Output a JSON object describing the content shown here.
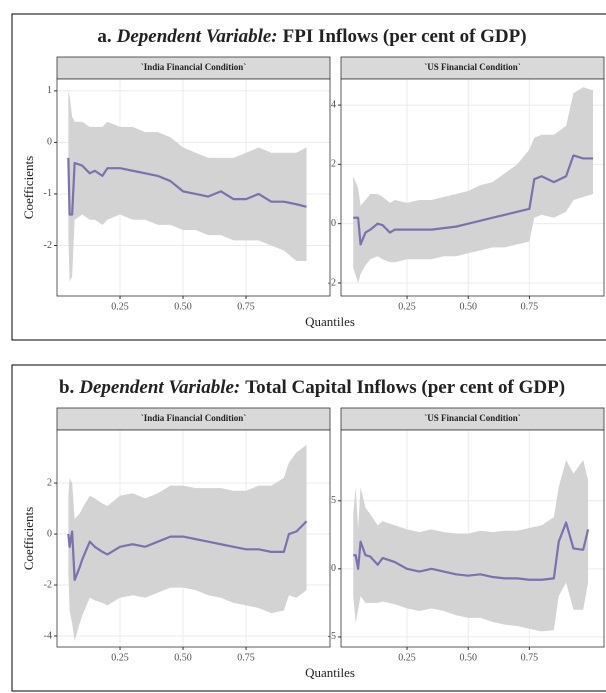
{
  "chart_data": [
    {
      "type": "line",
      "title_label": "a.",
      "title_emphasis": "Dependent Variable:",
      "title_text": "FPI Inflows (per cent of GDP)",
      "y_label": "Coefficients",
      "x_label": "Quantiles",
      "panels": [
        {
          "strip": "`India Financial Condition`",
          "color": "#7b72ad",
          "band_color": "#d3d3d3",
          "grid": true,
          "xlim": [
            0,
            1.083
          ],
          "xticks": [
            0.25,
            {
              "value": 0.5,
              "label": "0.50"
            },
            0.75
          ],
          "ylim": [
            -2.98,
            1.23
          ],
          "yticks": [
            1,
            0,
            -1,
            -2
          ],
          "x": [
            0.045,
            0.05,
            0.06,
            0.07,
            0.1,
            0.13,
            0.15,
            0.18,
            0.2,
            0.25,
            0.3,
            0.35,
            0.4,
            0.45,
            0.5,
            0.55,
            0.6,
            0.65,
            0.7,
            0.75,
            0.8,
            0.85,
            0.9,
            0.95,
            0.99
          ],
          "values": [
            -0.3,
            -1.4,
            -1.4,
            -0.4,
            -0.45,
            -0.6,
            -0.55,
            -0.65,
            -0.5,
            -0.5,
            -0.55,
            -0.6,
            -0.65,
            -0.75,
            -0.95,
            -1.0,
            -1.05,
            -0.95,
            -1.1,
            -1.1,
            -1.0,
            -1.15,
            -1.15,
            -1.2,
            -1.25
          ],
          "lower": [
            -1.8,
            -2.7,
            -2.6,
            -1.5,
            -1.4,
            -1.5,
            -1.5,
            -1.6,
            -1.5,
            -1.4,
            -1.5,
            -1.5,
            -1.6,
            -1.6,
            -1.7,
            -1.7,
            -1.8,
            -1.8,
            -1.9,
            -1.9,
            -1.9,
            -2.0,
            -2.1,
            -2.3,
            -2.3
          ],
          "upper": [
            1.0,
            0.9,
            0.5,
            0.4,
            0.4,
            0.3,
            0.3,
            0.3,
            0.4,
            0.3,
            0.3,
            0.2,
            0.2,
            0.1,
            -0.1,
            -0.2,
            -0.3,
            -0.3,
            -0.3,
            -0.2,
            -0.1,
            -0.2,
            -0.2,
            -0.2,
            -0.1
          ]
        },
        {
          "strip": "`US Financial Condition`",
          "color": "#7b72ad",
          "band_color": "#d3d3d3",
          "grid": true,
          "xlim": [
            -0.02,
            1.055
          ],
          "xticks": [
            0.25,
            {
              "value": 0.5,
              "label": "0.50"
            },
            0.75
          ],
          "ylim": [
            -2.44,
            4.88
          ],
          "yticks": [
            4,
            2,
            0,
            -2
          ],
          "x": [
            0.03,
            0.05,
            0.06,
            0.08,
            0.1,
            0.13,
            0.15,
            0.18,
            0.2,
            0.25,
            0.3,
            0.35,
            0.4,
            0.45,
            0.5,
            0.55,
            0.6,
            0.65,
            0.7,
            0.75,
            0.77,
            0.8,
            0.85,
            0.9,
            0.93,
            0.97,
            1.01
          ],
          "values": [
            0.2,
            0.2,
            -0.7,
            -0.3,
            -0.2,
            0,
            -0.05,
            -0.3,
            -0.2,
            -0.2,
            -0.2,
            -0.2,
            -0.15,
            -0.1,
            0,
            0.1,
            0.2,
            0.3,
            0.4,
            0.5,
            1.5,
            1.6,
            1.4,
            1.6,
            2.3,
            2.2,
            2.2
          ],
          "lower": [
            -1.5,
            -2,
            -1.7,
            -1.4,
            -1.2,
            -1.1,
            -1.2,
            -1.3,
            -1.3,
            -1.2,
            -1.2,
            -1.2,
            -1.1,
            -1.1,
            -1.0,
            -0.9,
            -0.8,
            -0.8,
            -0.7,
            -0.6,
            0.2,
            0.3,
            0.2,
            0.4,
            0.8,
            0.9,
            1.0
          ],
          "upper": [
            1.6,
            1.2,
            0.6,
            0.8,
            1.0,
            1.0,
            0.9,
            0.7,
            0.8,
            0.7,
            0.8,
            0.8,
            0.9,
            1.0,
            1.1,
            1.3,
            1.4,
            1.7,
            2.0,
            2.5,
            2.9,
            3.0,
            3.0,
            3.3,
            4.4,
            4.6,
            4.5
          ]
        }
      ]
    },
    {
      "type": "line",
      "title_label": "b.",
      "title_emphasis": "Dependent Variable:",
      "title_text": "Total Capital Inflows (per cent of GDP)",
      "y_label": "Coefficients",
      "x_label": "Quantiles",
      "panels": [
        {
          "strip": "`India Financial Condition`",
          "color": "#7b72ad",
          "band_color": "#d3d3d3",
          "grid": true,
          "xlim": [
            0,
            1.083
          ],
          "xticks": [
            0.25,
            {
              "value": 0.5,
              "label": "0.50"
            },
            0.75
          ],
          "ylim": [
            -4.43,
            4.08
          ],
          "yticks": [
            2,
            0,
            -2,
            -4
          ],
          "x": [
            0.045,
            0.05,
            0.06,
            0.07,
            0.09,
            0.1,
            0.13,
            0.15,
            0.18,
            0.2,
            0.25,
            0.3,
            0.35,
            0.4,
            0.45,
            0.5,
            0.55,
            0.6,
            0.65,
            0.7,
            0.75,
            0.8,
            0.85,
            0.9,
            0.92,
            0.95,
            0.99
          ],
          "values": [
            0,
            -0.5,
            0.1,
            -1.8,
            -1.3,
            -1.0,
            -0.3,
            -0.5,
            -0.7,
            -0.8,
            -0.5,
            -0.4,
            -0.5,
            -0.3,
            -0.1,
            -0.1,
            -0.2,
            -0.3,
            -0.4,
            -0.5,
            -0.6,
            -0.6,
            -0.7,
            -0.7,
            0,
            0.1,
            0.5
          ],
          "lower": [
            -1.5,
            -3.0,
            -3.5,
            -4.2,
            -3.5,
            -3.2,
            -2.5,
            -2.6,
            -2.7,
            -2.8,
            -2.5,
            -2.4,
            -2.5,
            -2.3,
            -2.1,
            -2.1,
            -2.2,
            -2.4,
            -2.5,
            -2.7,
            -2.8,
            -2.9,
            -3.1,
            -3.0,
            -2.4,
            -2.5,
            -2.2
          ],
          "upper": [
            1.5,
            2.2,
            2.0,
            0.6,
            0.8,
            1.0,
            1.5,
            1.4,
            1.2,
            1.1,
            1.5,
            1.6,
            1.4,
            1.6,
            1.9,
            1.9,
            1.8,
            1.8,
            1.8,
            1.7,
            1.7,
            1.9,
            1.9,
            2.2,
            2.8,
            3.2,
            3.5
          ]
        },
        {
          "strip": "`US Financial Condition`",
          "color": "#7b72ad",
          "band_color": "#d3d3d3",
          "grid": true,
          "xlim": [
            -0.02,
            1.055
          ],
          "xticks": [
            0.25,
            {
              "value": 0.5,
              "label": "0.50"
            },
            0.75
          ],
          "ylim": [
            -5.74,
            10.2
          ],
          "yticks": [
            5,
            0,
            -5
          ],
          "x": [
            0.03,
            0.04,
            0.05,
            0.06,
            0.08,
            0.1,
            0.13,
            0.15,
            0.2,
            0.25,
            0.3,
            0.35,
            0.4,
            0.45,
            0.5,
            0.55,
            0.6,
            0.65,
            0.7,
            0.75,
            0.8,
            0.85,
            0.87,
            0.9,
            0.93,
            0.97,
            0.99
          ],
          "values": [
            1.0,
            1.0,
            0,
            2.0,
            1.0,
            0.9,
            0.3,
            0.8,
            0.5,
            0,
            -0.2,
            0,
            -0.2,
            -0.4,
            -0.5,
            -0.4,
            -0.6,
            -0.7,
            -0.7,
            -0.8,
            -0.8,
            -0.7,
            2.0,
            3.4,
            1.5,
            1.4,
            2.9
          ],
          "lower": [
            -2,
            -4,
            -3,
            -2,
            -2.5,
            -2.5,
            -2.5,
            -2.4,
            -2.6,
            -2.9,
            -3.1,
            -2.9,
            -3.1,
            -3.4,
            -3.6,
            -3.6,
            -3.9,
            -4.1,
            -4.2,
            -4.4,
            -4.6,
            -4.5,
            -2,
            -1,
            -3,
            -3,
            -1
          ],
          "upper": [
            4,
            6,
            3,
            6,
            4.5,
            4,
            3.2,
            3.5,
            3.2,
            2.9,
            2.7,
            2.9,
            2.7,
            2.6,
            2.6,
            2.8,
            2.7,
            2.8,
            2.8,
            3.0,
            3.2,
            3.8,
            6,
            8,
            7,
            8,
            6.5
          ]
        }
      ]
    }
  ]
}
